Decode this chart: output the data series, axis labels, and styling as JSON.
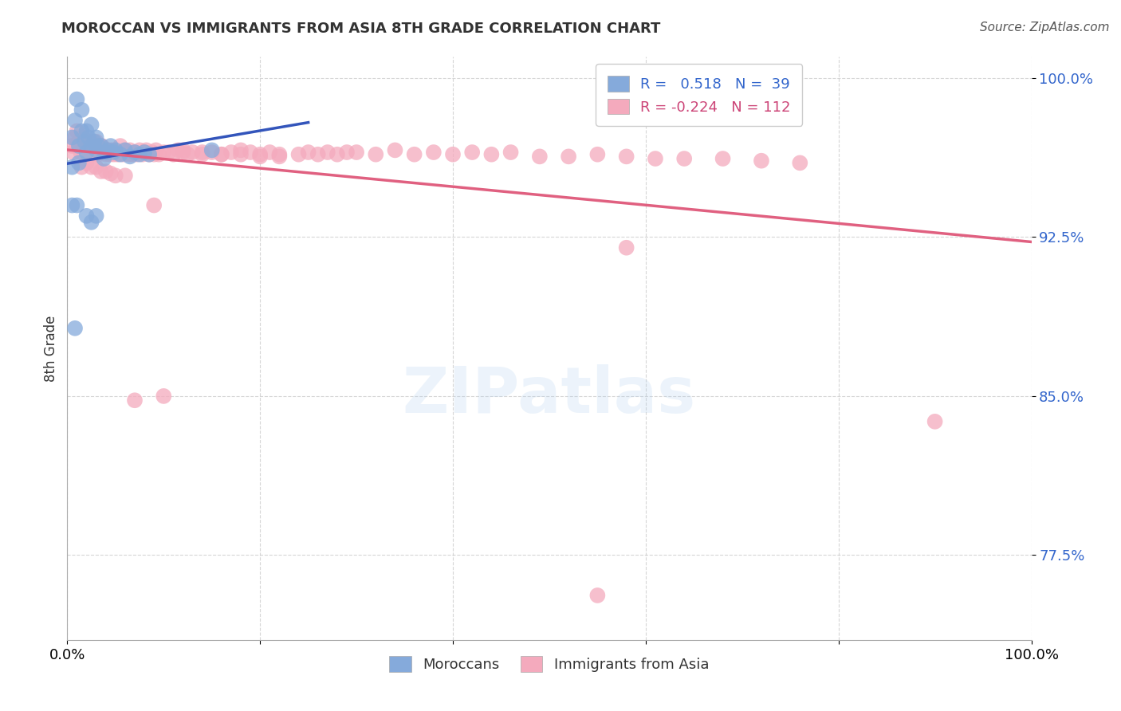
{
  "title": "MOROCCAN VS IMMIGRANTS FROM ASIA 8TH GRADE CORRELATION CHART",
  "source": "Source: ZipAtlas.com",
  "ylabel": "8th Grade",
  "blue_R": 0.518,
  "blue_N": 39,
  "pink_R": -0.224,
  "pink_N": 112,
  "blue_color": "#85AADB",
  "pink_color": "#F4AABD",
  "blue_line_color": "#3355BB",
  "pink_line_color": "#E06080",
  "watermark": "ZIPatlas",
  "ytick_vals": [
    0.775,
    0.85,
    0.925,
    1.0
  ],
  "ytick_labels": [
    "77.5%",
    "85.0%",
    "92.5%",
    "100.0%"
  ],
  "xlim": [
    0.0,
    1.0
  ],
  "ylim": [
    0.735,
    1.01
  ],
  "blue_x": [
    0.005,
    0.008,
    0.01,
    0.012,
    0.015,
    0.015,
    0.018,
    0.02,
    0.02,
    0.022,
    0.025,
    0.025,
    0.028,
    0.03,
    0.03,
    0.032,
    0.035,
    0.038,
    0.04,
    0.042,
    0.045,
    0.048,
    0.05,
    0.055,
    0.06,
    0.065,
    0.07,
    0.075,
    0.08,
    0.085,
    0.005,
    0.01,
    0.02,
    0.025,
    0.03,
    0.005,
    0.008,
    0.012,
    0.15
  ],
  "blue_y": [
    0.972,
    0.98,
    0.99,
    0.968,
    0.975,
    0.985,
    0.97,
    0.965,
    0.975,
    0.972,
    0.968,
    0.978,
    0.97,
    0.972,
    0.966,
    0.968,
    0.968,
    0.962,
    0.965,
    0.966,
    0.968,
    0.965,
    0.966,
    0.964,
    0.966,
    0.963,
    0.965,
    0.964,
    0.965,
    0.964,
    0.94,
    0.94,
    0.935,
    0.932,
    0.935,
    0.958,
    0.882,
    0.96,
    0.966
  ],
  "pink_x": [
    0.005,
    0.006,
    0.008,
    0.01,
    0.01,
    0.012,
    0.014,
    0.015,
    0.016,
    0.018,
    0.02,
    0.022,
    0.024,
    0.025,
    0.025,
    0.026,
    0.028,
    0.03,
    0.03,
    0.032,
    0.034,
    0.035,
    0.036,
    0.038,
    0.04,
    0.042,
    0.044,
    0.045,
    0.046,
    0.048,
    0.05,
    0.052,
    0.055,
    0.058,
    0.06,
    0.062,
    0.064,
    0.065,
    0.068,
    0.07,
    0.072,
    0.075,
    0.078,
    0.08,
    0.082,
    0.085,
    0.088,
    0.09,
    0.092,
    0.095,
    0.1,
    0.105,
    0.11,
    0.115,
    0.12,
    0.125,
    0.13,
    0.14,
    0.15,
    0.16,
    0.17,
    0.18,
    0.19,
    0.2,
    0.21,
    0.22,
    0.24,
    0.25,
    0.26,
    0.27,
    0.28,
    0.29,
    0.3,
    0.32,
    0.34,
    0.36,
    0.38,
    0.4,
    0.42,
    0.44,
    0.46,
    0.49,
    0.52,
    0.55,
    0.58,
    0.61,
    0.64,
    0.68,
    0.72,
    0.76,
    0.015,
    0.02,
    0.025,
    0.03,
    0.035,
    0.04,
    0.045,
    0.05,
    0.06,
    0.07,
    0.08,
    0.09,
    0.1,
    0.12,
    0.14,
    0.16,
    0.18,
    0.2,
    0.22,
    0.58,
    0.9,
    0.55
  ],
  "pink_y": [
    0.968,
    0.965,
    0.972,
    0.968,
    0.975,
    0.97,
    0.965,
    0.968,
    0.972,
    0.968,
    0.965,
    0.968,
    0.966,
    0.97,
    0.965,
    0.968,
    0.965,
    0.966,
    0.97,
    0.964,
    0.968,
    0.965,
    0.968,
    0.965,
    0.964,
    0.966,
    0.964,
    0.965,
    0.966,
    0.964,
    0.965,
    0.964,
    0.968,
    0.964,
    0.966,
    0.965,
    0.964,
    0.966,
    0.964,
    0.965,
    0.964,
    0.966,
    0.964,
    0.965,
    0.966,
    0.964,
    0.965,
    0.964,
    0.966,
    0.964,
    0.965,
    0.965,
    0.964,
    0.966,
    0.965,
    0.964,
    0.965,
    0.965,
    0.965,
    0.964,
    0.965,
    0.966,
    0.965,
    0.964,
    0.965,
    0.964,
    0.964,
    0.965,
    0.964,
    0.965,
    0.964,
    0.965,
    0.965,
    0.964,
    0.966,
    0.964,
    0.965,
    0.964,
    0.965,
    0.964,
    0.965,
    0.963,
    0.963,
    0.964,
    0.963,
    0.962,
    0.962,
    0.962,
    0.961,
    0.96,
    0.958,
    0.96,
    0.958,
    0.958,
    0.956,
    0.956,
    0.955,
    0.954,
    0.954,
    0.848,
    0.965,
    0.94,
    0.85,
    0.966,
    0.964,
    0.964,
    0.964,
    0.963,
    0.963,
    0.92,
    0.838,
    0.756
  ]
}
